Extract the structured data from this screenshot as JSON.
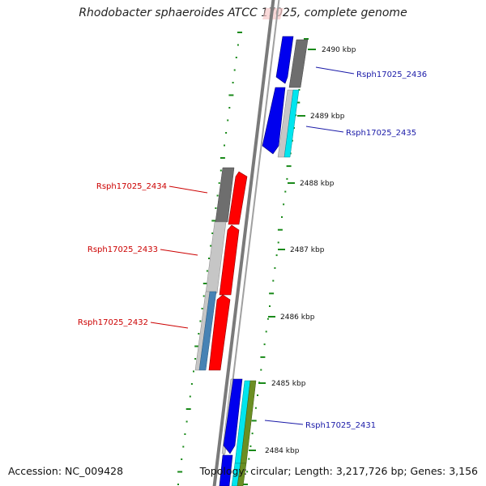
{
  "title": "Rhodobacter sphaeroides ATCC 17025, complete genome",
  "accession": "Accession: NC_009428",
  "topology": "Topology: circular; Length: 3,217,726 bp; Genes: 3,156",
  "ticks": [
    {
      "label": "2490 kbp"
    },
    {
      "label": "2489 kbp"
    },
    {
      "label": "2488 kbp"
    },
    {
      "label": "2487 kbp"
    },
    {
      "label": "2486 kbp"
    },
    {
      "label": "2485 kbp"
    },
    {
      "label": "2484 kbp"
    }
  ],
  "gene_labels": [
    {
      "text": "Rsph17025_2436",
      "color": "#1a1aa8"
    },
    {
      "text": "Rsph17025_2435",
      "color": "#1a1aa8"
    },
    {
      "text": "Rsph17025_2434",
      "color": "#cc0000"
    },
    {
      "text": "Rsph17025_2433",
      "color": "#cc0000"
    },
    {
      "text": "Rsph17025_2432",
      "color": "#cc0000"
    },
    {
      "text": "Rsph17025_2431",
      "color": "#1a1aa8"
    }
  ],
  "colors": {
    "forward_cds": "#0000ee",
    "reverse_cds": "#ff0000",
    "gc_skew_dots": "#1a8a1a",
    "backbone": "#888888",
    "gray_track": "#666666",
    "cyan_track": "#00e5ee"
  }
}
